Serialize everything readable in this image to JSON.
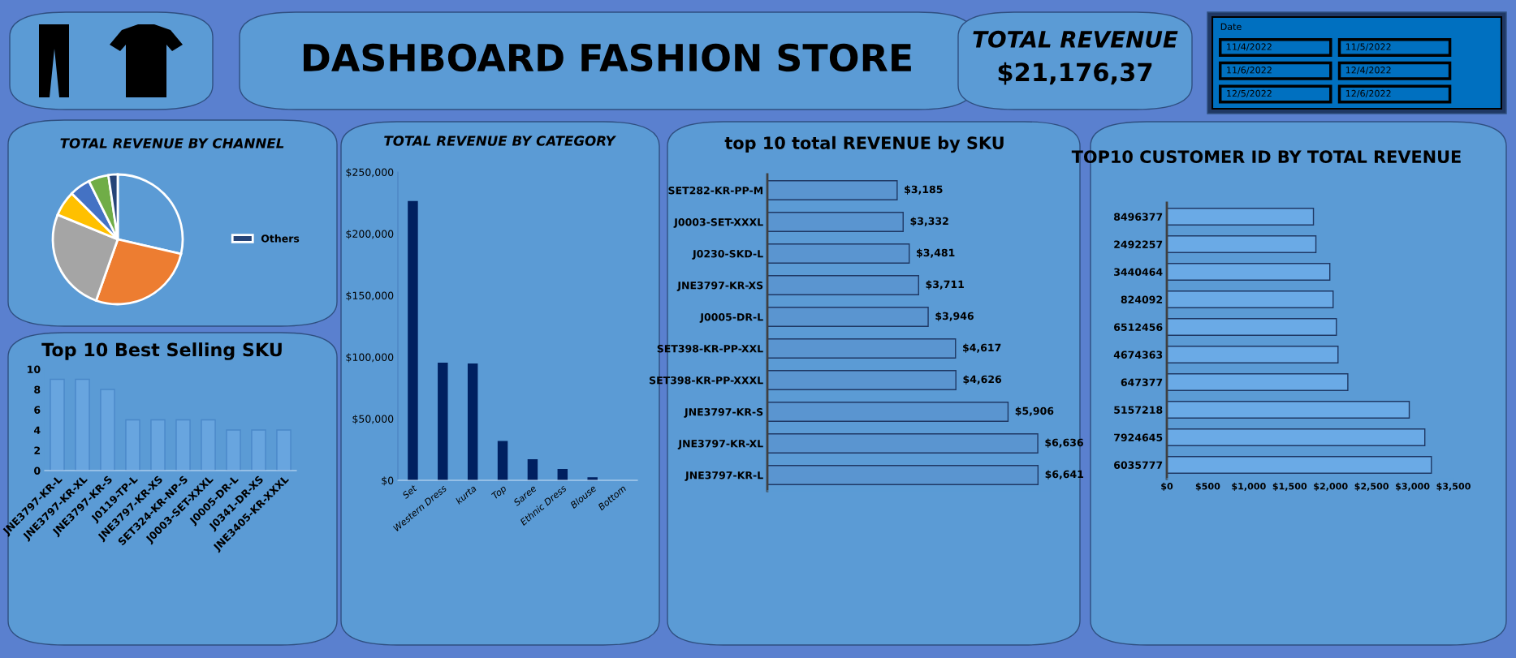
{
  "chart_data": [
    {
      "type": "other",
      "title": "DASHBOARD FASHION STORE"
    },
    {
      "type": "other",
      "title": "TOTAL REVENUE",
      "annotations": [
        "$21,176,37"
      ]
    },
    {
      "type": "other",
      "title": "Date",
      "annotations": [
        "11/4/2022",
        "11/5/2022",
        "11/6/2022",
        "12/4/2022",
        "12/5/2022",
        "12/6/2022"
      ]
    },
    {
      "type": "pie",
      "title": "TOTAL REVENUE BY CHANNEL",
      "categories": [
        null,
        null,
        null,
        null,
        null,
        null,
        "Others"
      ],
      "values": [
        28.6,
        26.8,
        25.8,
        6.3,
        5.2,
        5.0,
        2.3
      ],
      "colors": [
        "#5b9bd5",
        "#ed7d31",
        "#a5a5a5",
        "#ffc000",
        "#4472c4",
        "#70ad47",
        "#264478"
      ],
      "legend": "right"
    },
    {
      "type": "bar",
      "title": "Top 10 Best Selling SKU",
      "categories": [
        "JNE3797-KR-L",
        "JNE3797-KR-XL",
        "JNE3797-KR-S",
        "J0119-TP-L",
        "JNE3797-KR-XS",
        "SET324-KR-NP-S",
        "J0003-SET-XXXL",
        "J0005-DR-L",
        "J0341-DR-XS",
        "JNE3405-KR-XXXL"
      ],
      "values": [
        9,
        9,
        8,
        5,
        5,
        5,
        5,
        4,
        4,
        4
      ],
      "color": "#68a5df",
      "ylim": [
        0,
        10
      ],
      "yticks": [
        0,
        2,
        4,
        6,
        8,
        10
      ]
    },
    {
      "type": "bar",
      "title": "TOTAL REVENUE BY CATEGORY",
      "categories": [
        "Set",
        "Western Dress",
        "kurta",
        "Top",
        "Saree",
        "Ethnic Dress",
        "Blouse",
        "Bottom"
      ],
      "values": [
        226000,
        95000,
        94300,
        31400,
        16600,
        8700,
        2000,
        null
      ],
      "color": "#002060",
      "ylim": [
        0,
        250000
      ],
      "yticks": [
        {
          "value": 0,
          "label": "$0"
        },
        {
          "value": 50000,
          "label": "$50,000"
        },
        {
          "value": 100000,
          "label": "$100,000"
        },
        {
          "value": 150000,
          "label": "$150,000"
        },
        {
          "value": 200000,
          "label": "$200,000"
        },
        {
          "value": 250000,
          "label": "$250,000"
        }
      ]
    },
    {
      "type": "bar",
      "orientation": "horizontal",
      "title": "top 10 total REVENUE by SKU",
      "categories": [
        "SET282-KR-PP-M",
        "J0003-SET-XXXL",
        "J0230-SKD-L",
        "JNE3797-KR-XS",
        "J0005-DR-L",
        "SET398-KR-PP-XXL",
        "SET398-KR-PP-XXXL",
        "JNE3797-KR-S",
        "JNE3797-KR-XL",
        "JNE3797-KR-L"
      ],
      "values": [
        3185,
        3332,
        3481,
        3711,
        3946,
        4617,
        4626,
        5906,
        6636,
        6641
      ],
      "value_labels": [
        "$3,185",
        "$3,332",
        "$3,481",
        "$3,711",
        "$3,946",
        "$4,617",
        "$4,626",
        "$5,906",
        "$6,636",
        "$6,641"
      ],
      "color": "#5a95d0",
      "tick_labels": "y"
    },
    {
      "type": "bar",
      "orientation": "horizontal",
      "title": "TOP10 CUSTOMER ID BY TOTAL REVENUE",
      "categories": [
        "8496377",
        "2492257",
        "3440464",
        "824092",
        "6512456",
        "4674363",
        "647377",
        "5157218",
        "7924645",
        "6035777"
      ],
      "values": [
        1790,
        1820,
        1990,
        2030,
        2070,
        2090,
        2210,
        2960,
        3150,
        3230
      ],
      "color": "#6aaae6",
      "xlim": [
        0,
        3500
      ],
      "xticks": [
        {
          "value": 0,
          "label": "$0"
        },
        {
          "value": 500,
          "label": "$500"
        },
        {
          "value": 1000,
          "label": "$1,000"
        },
        {
          "value": 1500,
          "label": "$1,500"
        },
        {
          "value": 2000,
          "label": "$2,000"
        },
        {
          "value": 2500,
          "label": "$2,500"
        },
        {
          "value": 3000,
          "label": "$3,000"
        },
        {
          "value": 3500,
          "label": "$3,500"
        }
      ]
    }
  ]
}
